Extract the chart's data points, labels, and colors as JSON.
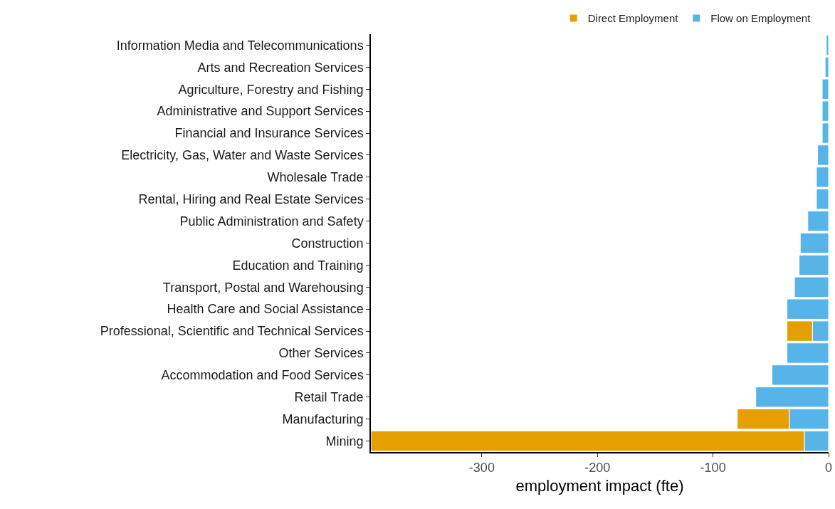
{
  "chart_data": {
    "type": "bar",
    "orientation": "horizontal",
    "stacked": true,
    "xlabel": "employment impact (fte)",
    "categories": [
      "Information Media and Telecommunications",
      "Arts and Recreation Services",
      "Agriculture, Forestry and Fishing",
      "Administrative and Support Services",
      "Financial and Insurance Services",
      "Electricity, Gas, Water and Waste Services",
      "Wholesale Trade",
      "Rental, Hiring and Real Estate Services",
      "Public Administration and Safety",
      "Construction",
      "Education and Training",
      "Transport, Postal and Warehousing",
      "Health Care and Social Assistance",
      "Professional, Scientific and Technical Services",
      "Other Services",
      "Accommodation and Food Services",
      "Retail Trade",
      "Manufacturing",
      "Mining"
    ],
    "series": [
      {
        "name": "Flow on Employment",
        "color": "#56b4e9",
        "values": [
          -2,
          -3,
          -5.5,
          -5.5,
          -5.5,
          -9.5,
          -10.5,
          -10.5,
          -18,
          -24.5,
          -25.5,
          -29.5,
          -36,
          -14,
          -36,
          -49,
          -63,
          -34,
          -21
        ]
      },
      {
        "name": "Direct Employment",
        "color": "#e69f00",
        "values": [
          null,
          null,
          null,
          null,
          null,
          null,
          null,
          null,
          null,
          null,
          null,
          null,
          null,
          -22,
          null,
          null,
          null,
          -45,
          -375
        ]
      }
    ],
    "xlim": [
      -396,
      0
    ],
    "xticks": [
      -300,
      -200,
      -100,
      0
    ],
    "grid": false,
    "legend": "top"
  }
}
